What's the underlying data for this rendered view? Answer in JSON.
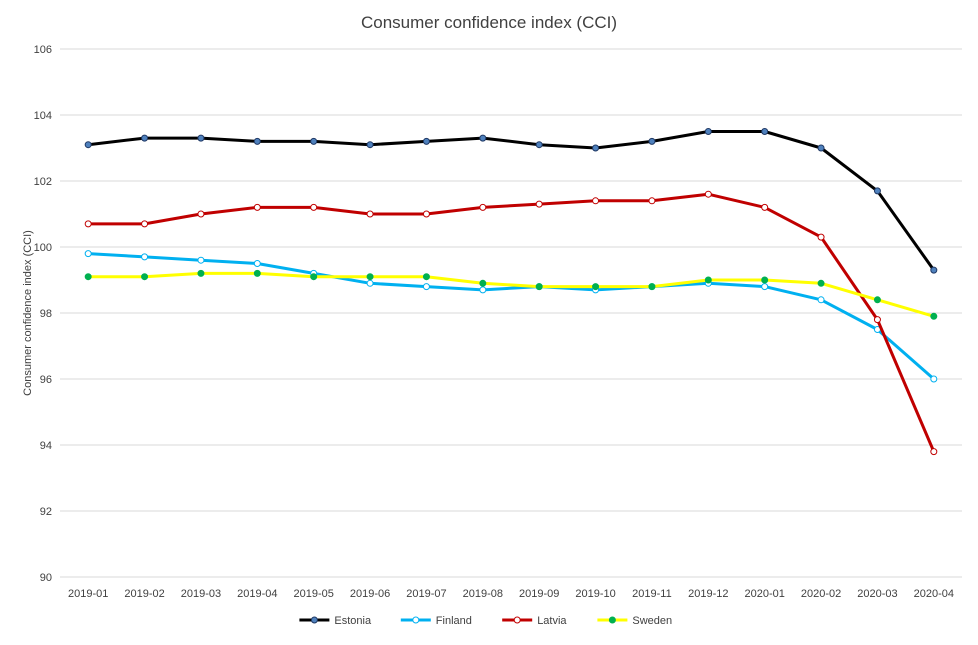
{
  "chart_data": {
    "type": "line",
    "title": "Consumer confidence index (CCI)",
    "xlabel": "",
    "ylabel": "Consumer confidence index (CCI)",
    "ylim": [
      90,
      106
    ],
    "y_ticks": [
      90,
      92,
      94,
      96,
      98,
      100,
      102,
      104,
      106
    ],
    "grid": true,
    "legend_position": "bottom",
    "categories": [
      "2019-01",
      "2019-02",
      "2019-03",
      "2019-04",
      "2019-05",
      "2019-06",
      "2019-07",
      "2019-08",
      "2019-09",
      "2019-10",
      "2019-11",
      "2019-12",
      "2020-01",
      "2020-02",
      "2020-03",
      "2020-04"
    ],
    "series": [
      {
        "name": "Estonia",
        "color": "#000000",
        "marker_fill": "#4f81bd",
        "values": [
          103.1,
          103.3,
          103.3,
          103.2,
          103.2,
          103.1,
          103.2,
          103.3,
          103.1,
          103.0,
          103.2,
          103.5,
          103.5,
          103.0,
          101.7,
          99.3
        ]
      },
      {
        "name": "Finland",
        "color": "#00b0f0",
        "marker_fill": "#ffffff",
        "values": [
          99.8,
          99.7,
          99.6,
          99.5,
          99.2,
          98.9,
          98.8,
          98.7,
          98.8,
          98.7,
          98.8,
          98.9,
          98.8,
          98.4,
          97.5,
          96.0
        ]
      },
      {
        "name": "Latvia",
        "color": "#c00000",
        "marker_fill": "#ffffff",
        "values": [
          100.7,
          100.7,
          101.0,
          101.2,
          101.2,
          101.0,
          101.0,
          101.2,
          101.3,
          101.4,
          101.4,
          101.6,
          101.2,
          100.3,
          97.8,
          93.8
        ]
      },
      {
        "name": "Sweden",
        "color": "#ffff00",
        "marker_fill": "#00b050",
        "values": [
          99.1,
          99.1,
          99.2,
          99.2,
          99.1,
          99.1,
          99.1,
          98.9,
          98.8,
          98.8,
          98.8,
          99.0,
          99.0,
          98.9,
          98.4,
          97.9
        ]
      }
    ]
  }
}
